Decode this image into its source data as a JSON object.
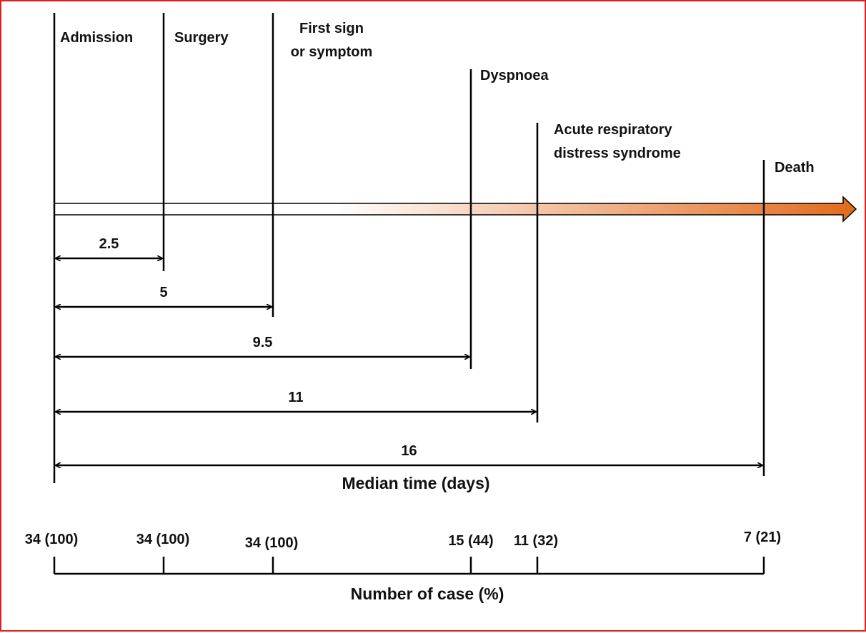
{
  "colors": {
    "frame": "#e0201e",
    "arrow_start": "#ffffff",
    "arrow_end": "#e26a1c",
    "line": "#000000"
  },
  "events": [
    {
      "id": "admission",
      "label_lines": [
        "Admission"
      ]
    },
    {
      "id": "surgery",
      "label_lines": [
        "Surgery"
      ]
    },
    {
      "id": "first-sign",
      "label_lines": [
        "First sign",
        "or symptom"
      ]
    },
    {
      "id": "dyspnoea",
      "label_lines": [
        "Dyspnoea"
      ]
    },
    {
      "id": "ards",
      "label_lines": [
        "Acute respiratory",
        "distress syndrome"
      ]
    },
    {
      "id": "death",
      "label_lines": [
        "Death"
      ]
    }
  ],
  "median_times": [
    {
      "event": "surgery",
      "days": "2.5"
    },
    {
      "event": "first-sign",
      "days": "5"
    },
    {
      "event": "dyspnoea",
      "days": "9.5"
    },
    {
      "event": "ards",
      "days": "11"
    },
    {
      "event": "death",
      "days": "16"
    }
  ],
  "median_axis_label": "Median time (days)",
  "case_counts": [
    {
      "event": "admission",
      "text": "34 (100)"
    },
    {
      "event": "surgery",
      "text": "34 (100)"
    },
    {
      "event": "first-sign",
      "text": "34 (100)"
    },
    {
      "event": "dyspnoea",
      "text": "15 (44)"
    },
    {
      "event": "ards",
      "text": "11 (32)"
    },
    {
      "event": "death",
      "text": "7 (21)"
    }
  ],
  "case_axis_label": "Number of case (%)"
}
